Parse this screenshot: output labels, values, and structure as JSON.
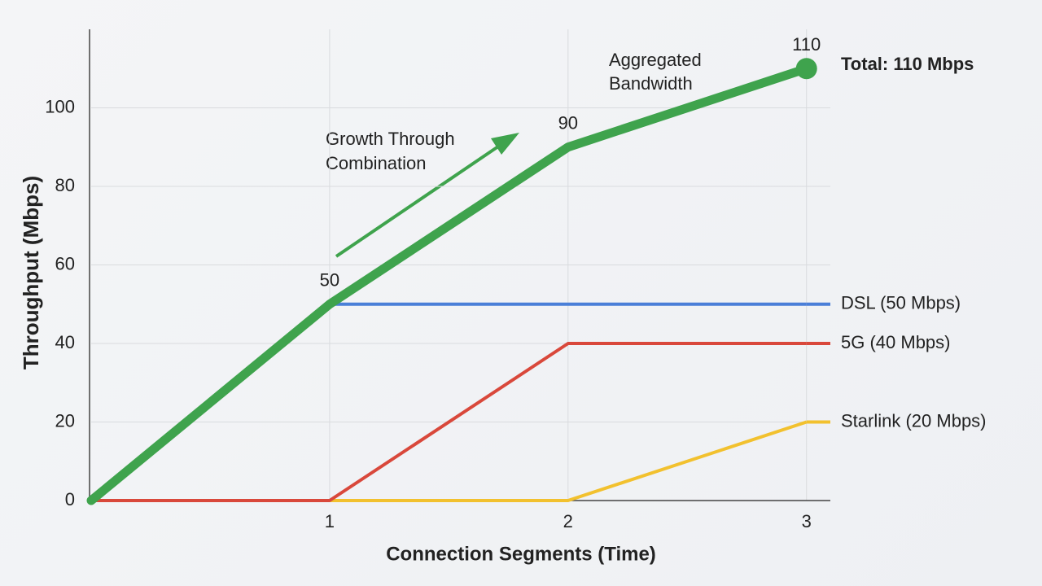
{
  "chart_data": {
    "type": "line",
    "y_label": "Throughput (Mbps)",
    "x_label": "Connection Segments (Time)",
    "x": [
      0,
      1,
      2,
      3
    ],
    "xlim": [
      0,
      3.1
    ],
    "xticks": [
      1,
      2,
      3
    ],
    "ylim": [
      0,
      120
    ],
    "yticks": [
      0,
      20,
      40,
      60,
      80,
      100
    ],
    "grid": true,
    "series": [
      {
        "name": "Aggregated Bandwidth",
        "color": "#3fa34d",
        "values": [
          0,
          50,
          90,
          110
        ]
      },
      {
        "name": "DSL (50 Mbps)",
        "color": "#4a7fd8",
        "values": [
          null,
          50,
          50,
          50
        ]
      },
      {
        "name": "5G (40 Mbps)",
        "color": "#d9483b",
        "values": [
          0,
          0,
          40,
          40
        ]
      },
      {
        "name": "Starlink (20 Mbps)",
        "color": "#f2c12e",
        "values": [
          0,
          0,
          0,
          20
        ]
      }
    ],
    "annotations": [
      "Growth Through",
      "Combination"
    ],
    "total_label": "Total: 110 Mbps"
  }
}
